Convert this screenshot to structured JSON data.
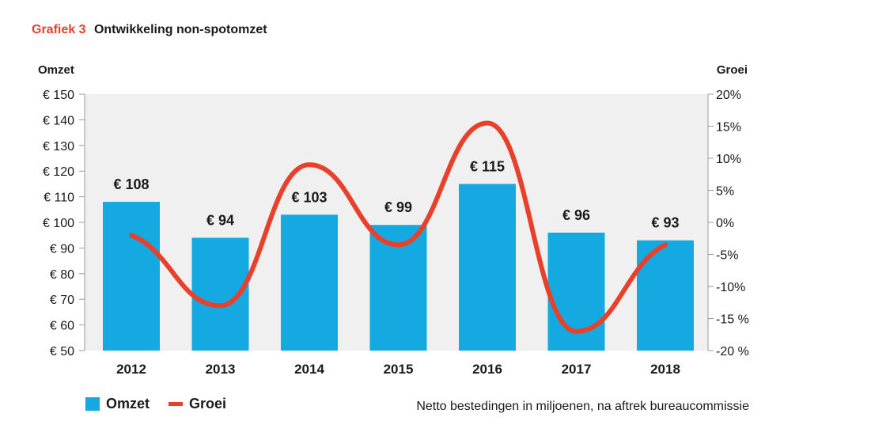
{
  "header": {
    "tag": "Grafiek 3",
    "title": "Ontwikkeling non-spotomzet"
  },
  "colors": {
    "bar": "#14a9e1",
    "line": "#e8402a",
    "plot_bg": "#f0f0f0",
    "tag": "#e8402a"
  },
  "footnote": "Netto bestedingen in miljoenen, na aftrek bureaucommissie",
  "chart_data": {
    "type": "bar",
    "categories": [
      "2012",
      "2013",
      "2014",
      "2015",
      "2016",
      "2017",
      "2018"
    ],
    "series": [
      {
        "name": "Omzet",
        "type": "bar",
        "axis": "left",
        "values": [
          108,
          94,
          103,
          99,
          115,
          96,
          93
        ],
        "labels": [
          "€ 108",
          "€ 94",
          "€ 103",
          "€ 99",
          "€ 115",
          "€ 96",
          "€ 93"
        ]
      },
      {
        "name": "Groei",
        "type": "line",
        "axis": "right",
        "smooth": true,
        "values": [
          -2,
          -13,
          9,
          -3.5,
          15.5,
          -17,
          -3.5
        ]
      }
    ],
    "y_left": {
      "label": "Omzet",
      "min": 50,
      "max": 150,
      "ticks": [
        50,
        60,
        70,
        80,
        90,
        100,
        110,
        120,
        130,
        140,
        150
      ],
      "tick_labels": [
        "€ 50",
        "€ 60",
        "€ 70",
        "€ 80",
        "€ 90",
        "€ 100",
        "€ 110",
        "€ 120",
        "€ 130",
        "€ 140",
        "€ 150"
      ]
    },
    "y_right": {
      "label": "Groei",
      "min": -20,
      "max": 20,
      "ticks": [
        -20,
        -15,
        -10,
        -5,
        0,
        5,
        10,
        15,
        20
      ],
      "tick_labels": [
        "-20 %",
        "-15 %",
        "-10%",
        "-5%",
        "0%",
        "5%",
        "10%",
        "15%",
        "20%"
      ]
    },
    "grid": false,
    "legend": "bottom-left"
  }
}
